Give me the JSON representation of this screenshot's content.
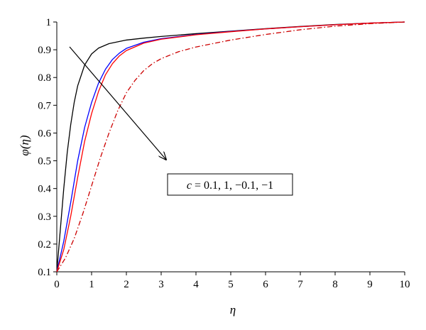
{
  "chart_data": {
    "type": "line",
    "xlabel": "η",
    "ylabel": "φ(η)",
    "xlim": [
      0,
      10
    ],
    "ylim": [
      0.1,
      1
    ],
    "x_ticks": [
      "0",
      "1",
      "2",
      "3",
      "4",
      "5",
      "6",
      "7",
      "8",
      "9",
      "10"
    ],
    "y_ticks": [
      "0.1",
      "0.2",
      "0.3",
      "0.4",
      "0.5",
      "0.6",
      "0.7",
      "0.8",
      "0.9",
      "1"
    ],
    "grid": false,
    "legend": "none",
    "annotation": {
      "var": "c",
      "values": " = 0.1, 1, −0.1, −1",
      "arrow_direction": "increasing c along listed order"
    },
    "series": [
      {
        "color": "#000000",
        "dash": "solid",
        "x": [
          0,
          0.1,
          0.2,
          0.3,
          0.4,
          0.5,
          0.6,
          0.8,
          1.0,
          1.2,
          1.5,
          2.0,
          2.5,
          3,
          4,
          5,
          6,
          7,
          8,
          9,
          10
        ],
        "y": [
          0.1,
          0.25,
          0.4,
          0.53,
          0.63,
          0.71,
          0.77,
          0.845,
          0.885,
          0.906,
          0.922,
          0.935,
          0.942,
          0.948,
          0.958,
          0.967,
          0.976,
          0.984,
          0.991,
          0.996,
          1.0
        ]
      },
      {
        "color": "#0000ff",
        "dash": "solid",
        "x": [
          0,
          0.2,
          0.4,
          0.6,
          0.8,
          1.0,
          1.2,
          1.4,
          1.6,
          1.8,
          2.0,
          2.5,
          3,
          4,
          5,
          6,
          7,
          8,
          9,
          10
        ],
        "y": [
          0.1,
          0.21,
          0.35,
          0.5,
          0.62,
          0.71,
          0.78,
          0.83,
          0.865,
          0.888,
          0.905,
          0.927,
          0.94,
          0.955,
          0.966,
          0.975,
          0.983,
          0.99,
          0.996,
          1.0
        ]
      },
      {
        "color": "#ff0000",
        "dash": "solid",
        "x": [
          0,
          0.2,
          0.4,
          0.6,
          0.8,
          1.0,
          1.2,
          1.4,
          1.6,
          1.8,
          2.0,
          2.5,
          3,
          4,
          5,
          6,
          7,
          8,
          9,
          10
        ],
        "y": [
          0.1,
          0.18,
          0.3,
          0.44,
          0.57,
          0.67,
          0.75,
          0.81,
          0.85,
          0.878,
          0.897,
          0.924,
          0.938,
          0.954,
          0.965,
          0.975,
          0.983,
          0.99,
          0.996,
          1.0
        ]
      },
      {
        "color": "#cc0000",
        "dash": "dashdot",
        "x": [
          0,
          0.25,
          0.5,
          0.75,
          1.0,
          1.25,
          1.5,
          1.75,
          2.0,
          2.25,
          2.5,
          2.75,
          3,
          3.5,
          4,
          5,
          6,
          7,
          8,
          9,
          10
        ],
        "y": [
          0.1,
          0.15,
          0.22,
          0.31,
          0.41,
          0.51,
          0.6,
          0.68,
          0.745,
          0.79,
          0.825,
          0.85,
          0.868,
          0.893,
          0.91,
          0.935,
          0.955,
          0.972,
          0.985,
          0.994,
          1.0
        ]
      }
    ]
  }
}
